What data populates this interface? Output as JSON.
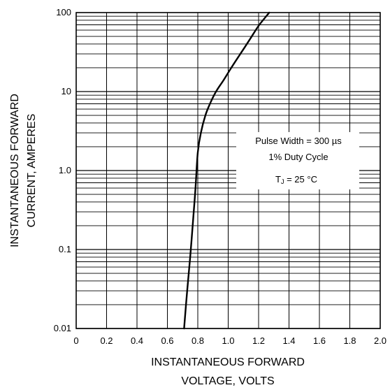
{
  "chart_data": {
    "type": "line",
    "title": "",
    "xlabel_lines": [
      "INSTANTANEOUS FORWARD",
      "VOLTAGE, VOLTS"
    ],
    "ylabel_lines": [
      "INSTANTANEOUS FORWARD",
      "CURRENT,  AMPERES"
    ],
    "xlim": [
      0,
      2.0
    ],
    "ylim": [
      0.01,
      100
    ],
    "y_scale": "log",
    "x_ticks": [
      "0",
      "0.2",
      "0.4",
      "0.6",
      "0.8",
      "1.0",
      "1.2",
      "1.4",
      "1.6",
      "1.8",
      "2.0"
    ],
    "y_ticks": [
      "0.01",
      "0.1",
      "1.0",
      "10",
      "100"
    ],
    "grid": true,
    "series": [
      {
        "x": [
          0.71,
          0.73,
          0.75,
          0.77,
          0.785,
          0.8,
          0.82,
          0.85,
          0.88,
          0.92,
          0.97,
          1.02,
          1.08,
          1.14,
          1.2,
          1.27
        ],
        "y": [
          0.01,
          0.03,
          0.08,
          0.25,
          0.6,
          1.7,
          3.0,
          5.0,
          7.0,
          10.0,
          14.0,
          20.0,
          30.0,
          45.0,
          68.0,
          100.0
        ]
      }
    ],
    "annotation": {
      "line1": "Pulse Width = 300 µs",
      "line2": "1% Duty Cycle",
      "line3_prefix": "T",
      "line3_sub": "J",
      "line3_suffix": " = 25 °C"
    }
  }
}
